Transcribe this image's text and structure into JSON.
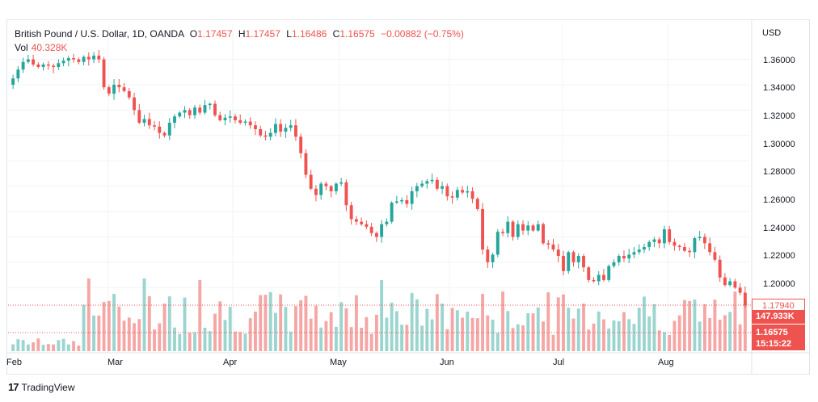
{
  "legend": {
    "symbol": "British Pound / U.S. Dollar, 1D, OANDA",
    "o_label": "O",
    "o_value": "1.17457",
    "h_label": "H",
    "h_value": "1.17457",
    "l_label": "L",
    "l_value": "1.16486",
    "c_label": "C",
    "c_value": "1.16575",
    "change": "−0.00882 (−0.75%)",
    "vol_label": "Vol",
    "vol_value": "40.328K"
  },
  "axis": {
    "currency": "USD",
    "y_ticks": [
      "1.36000",
      "1.34000",
      "1.32000",
      "1.30000",
      "1.28000",
      "1.26000",
      "1.24000",
      "1.22000",
      "1.20000"
    ],
    "x_ticks": [
      "Feb",
      "Mar",
      "Apr",
      "May",
      "Jun",
      "Jul",
      "Aug"
    ]
  },
  "tags": {
    "line_price": "1.17940",
    "volume": "147.933K",
    "last_price": "1.16575",
    "countdown": "15:15:22"
  },
  "footer": {
    "brand": "TradingView"
  },
  "colors": {
    "up": "#26a69a",
    "down": "#ef5350",
    "vol_up": "#9bd5cf",
    "vol_down": "#f5a6a5",
    "grid": "#f0f3fa"
  },
  "chart_data": {
    "type": "candlestick",
    "title": "British Pound / U.S. Dollar, 1D, OANDA",
    "ylabel": "USD",
    "ylim": [
      1.17,
      1.368
    ],
    "x_ticks": [
      "Feb",
      "Mar",
      "Apr",
      "May",
      "Jun",
      "Jul",
      "Aug"
    ],
    "close_series": [
      1.345,
      1.352,
      1.358,
      1.36,
      1.356,
      1.354,
      1.356,
      1.355,
      1.354,
      1.357,
      1.359,
      1.361,
      1.36,
      1.358,
      1.362,
      1.36,
      1.363,
      1.36,
      1.338,
      1.333,
      1.34,
      1.338,
      1.335,
      1.33,
      1.32,
      1.31,
      1.313,
      1.308,
      1.307,
      1.302,
      1.3,
      1.31,
      1.315,
      1.318,
      1.32,
      1.316,
      1.322,
      1.318,
      1.324,
      1.325,
      1.316,
      1.312,
      1.314,
      1.315,
      1.312,
      1.31,
      1.311,
      1.308,
      1.305,
      1.3,
      1.299,
      1.302,
      1.309,
      1.303,
      1.306,
      1.308,
      1.299,
      1.286,
      1.269,
      1.258,
      1.253,
      1.262,
      1.26,
      1.256,
      1.262,
      1.263,
      1.245,
      1.234,
      1.232,
      1.23,
      1.228,
      1.223,
      1.22,
      1.23,
      1.232,
      1.247,
      1.248,
      1.249,
      1.246,
      1.256,
      1.26,
      1.262,
      1.264,
      1.265,
      1.258,
      1.26,
      1.252,
      1.251,
      1.257,
      1.255,
      1.256,
      1.25,
      1.242,
      1.21,
      1.2,
      1.206,
      1.224,
      1.223,
      1.232,
      1.22,
      1.23,
      1.225,
      1.229,
      1.225,
      1.23,
      1.215,
      1.214,
      1.21,
      1.205,
      1.193,
      1.208,
      1.2,
      1.205,
      1.196,
      1.186,
      1.185,
      1.19,
      1.186,
      1.197,
      1.2,
      1.205,
      1.203,
      1.206,
      1.208,
      1.21,
      1.212,
      1.216,
      1.218,
      1.215,
      1.226,
      1.216,
      1.213,
      1.212,
      1.209,
      1.208,
      1.219,
      1.22,
      1.215,
      1.208,
      1.202,
      1.188,
      1.182,
      1.185,
      1.18,
      1.176,
      1.166
    ],
    "volume_hint": "daily volume bars shown beneath price, colored by candle direction"
  }
}
